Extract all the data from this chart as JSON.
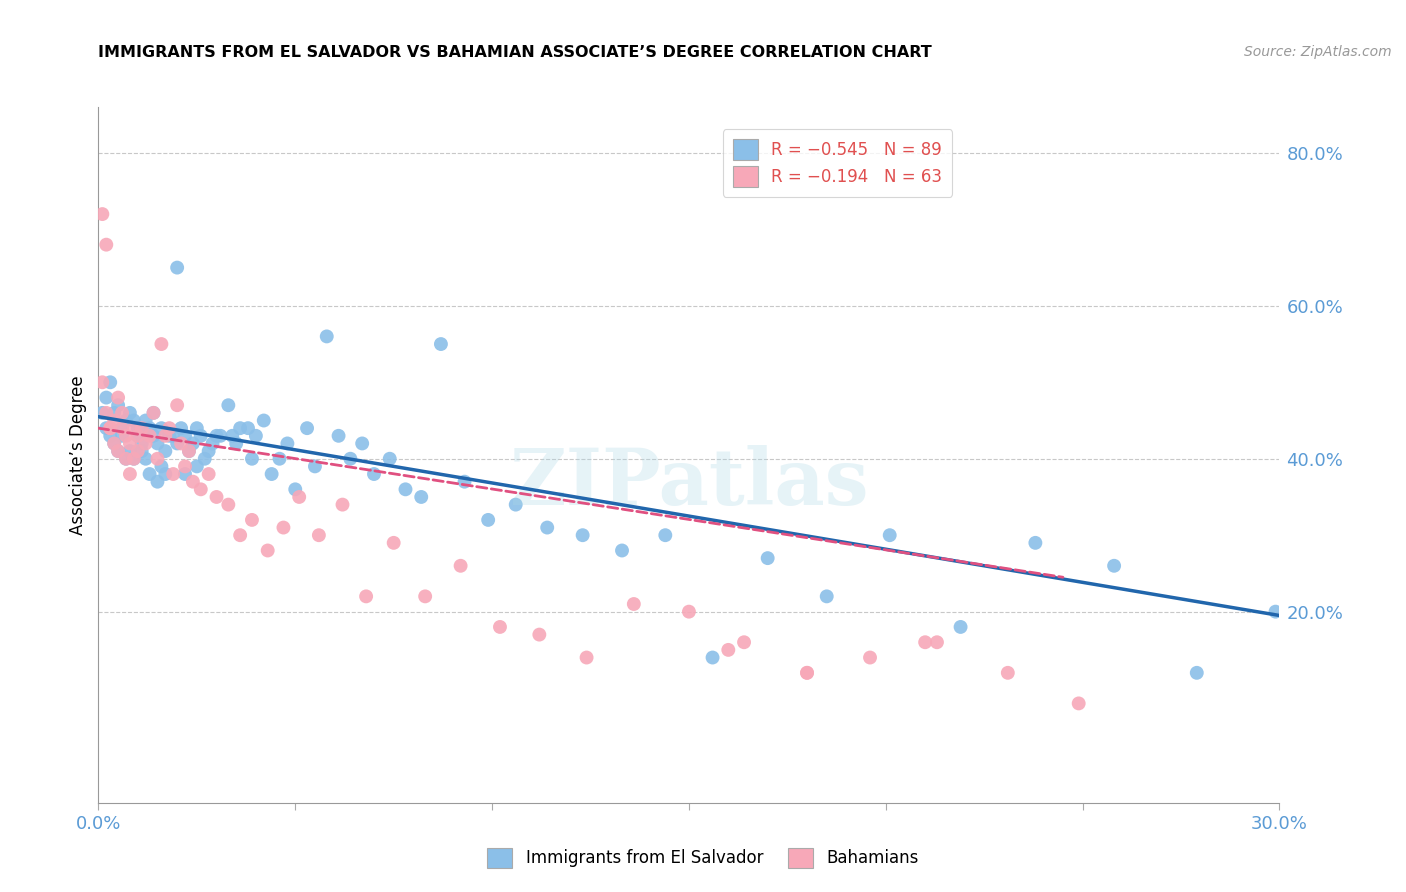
{
  "title": "IMMIGRANTS FROM EL SALVADOR VS BAHAMIAN ASSOCIATE’S DEGREE CORRELATION CHART",
  "source": "Source: ZipAtlas.com",
  "ylabel": "Associate’s Degree",
  "blue_color": "#8bbfe8",
  "blue_line_color": "#2166ac",
  "pink_color": "#f7a8b8",
  "pink_line_color": "#e05080",
  "watermark": "ZIPatlas",
  "xmin": 0.0,
  "xmax": 0.3,
  "ymin": -0.05,
  "ymax": 0.86,
  "legend_r1": "-0.545",
  "legend_n1": "89",
  "legend_r2": "-0.194",
  "legend_n2": "63",
  "yticks": [
    0.0,
    0.2,
    0.4,
    0.6,
    0.8
  ],
  "ytick_labels": [
    "",
    "20.0%",
    "40.0%",
    "60.0%",
    "80.0%"
  ],
  "blue_trend_x0": 0.0,
  "blue_trend_y0": 0.455,
  "blue_trend_x1": 0.3,
  "blue_trend_y1": 0.195,
  "pink_trend_x0": 0.0,
  "pink_trend_y0": 0.44,
  "pink_trend_x1": 0.245,
  "pink_trend_y1": 0.245,
  "scatter_blue_x": [
    0.001,
    0.002,
    0.002,
    0.003,
    0.003,
    0.004,
    0.004,
    0.005,
    0.005,
    0.006,
    0.006,
    0.007,
    0.007,
    0.008,
    0.008,
    0.009,
    0.009,
    0.01,
    0.01,
    0.011,
    0.011,
    0.012,
    0.012,
    0.013,
    0.013,
    0.014,
    0.014,
    0.015,
    0.015,
    0.016,
    0.016,
    0.017,
    0.017,
    0.018,
    0.019,
    0.02,
    0.02,
    0.021,
    0.022,
    0.022,
    0.023,
    0.024,
    0.025,
    0.025,
    0.026,
    0.027,
    0.028,
    0.029,
    0.03,
    0.031,
    0.033,
    0.034,
    0.035,
    0.036,
    0.038,
    0.039,
    0.04,
    0.042,
    0.044,
    0.046,
    0.048,
    0.05,
    0.053,
    0.055,
    0.058,
    0.061,
    0.064,
    0.067,
    0.07,
    0.074,
    0.078,
    0.082,
    0.087,
    0.093,
    0.099,
    0.106,
    0.114,
    0.123,
    0.133,
    0.144,
    0.156,
    0.17,
    0.185,
    0.201,
    0.219,
    0.238,
    0.258,
    0.279,
    0.299
  ],
  "scatter_blue_y": [
    0.46,
    0.44,
    0.48,
    0.43,
    0.5,
    0.42,
    0.46,
    0.47,
    0.41,
    0.44,
    0.43,
    0.45,
    0.4,
    0.46,
    0.41,
    0.45,
    0.4,
    0.44,
    0.43,
    0.42,
    0.41,
    0.45,
    0.4,
    0.44,
    0.38,
    0.43,
    0.46,
    0.37,
    0.42,
    0.39,
    0.44,
    0.38,
    0.41,
    0.43,
    0.43,
    0.65,
    0.42,
    0.44,
    0.43,
    0.38,
    0.41,
    0.42,
    0.44,
    0.39,
    0.43,
    0.4,
    0.41,
    0.42,
    0.43,
    0.43,
    0.47,
    0.43,
    0.42,
    0.44,
    0.44,
    0.4,
    0.43,
    0.45,
    0.38,
    0.4,
    0.42,
    0.36,
    0.44,
    0.39,
    0.56,
    0.43,
    0.4,
    0.42,
    0.38,
    0.4,
    0.36,
    0.35,
    0.55,
    0.37,
    0.32,
    0.34,
    0.31,
    0.3,
    0.28,
    0.3,
    0.14,
    0.27,
    0.22,
    0.3,
    0.18,
    0.29,
    0.26,
    0.12,
    0.2
  ],
  "scatter_pink_x": [
    0.001,
    0.001,
    0.002,
    0.002,
    0.003,
    0.003,
    0.004,
    0.004,
    0.005,
    0.005,
    0.006,
    0.006,
    0.007,
    0.007,
    0.008,
    0.008,
    0.009,
    0.009,
    0.01,
    0.01,
    0.011,
    0.012,
    0.013,
    0.014,
    0.015,
    0.016,
    0.017,
    0.018,
    0.019,
    0.02,
    0.021,
    0.022,
    0.023,
    0.024,
    0.026,
    0.028,
    0.03,
    0.033,
    0.036,
    0.039,
    0.043,
    0.047,
    0.051,
    0.056,
    0.062,
    0.068,
    0.075,
    0.083,
    0.092,
    0.102,
    0.112,
    0.124,
    0.136,
    0.15,
    0.164,
    0.18,
    0.196,
    0.213,
    0.231,
    0.249,
    0.21,
    0.18,
    0.16
  ],
  "scatter_pink_y": [
    0.72,
    0.5,
    0.68,
    0.46,
    0.44,
    0.44,
    0.42,
    0.45,
    0.41,
    0.48,
    0.46,
    0.44,
    0.43,
    0.4,
    0.42,
    0.38,
    0.44,
    0.4,
    0.43,
    0.41,
    0.44,
    0.42,
    0.43,
    0.46,
    0.4,
    0.55,
    0.43,
    0.44,
    0.38,
    0.47,
    0.42,
    0.39,
    0.41,
    0.37,
    0.36,
    0.38,
    0.35,
    0.34,
    0.3,
    0.32,
    0.28,
    0.31,
    0.35,
    0.3,
    0.34,
    0.22,
    0.29,
    0.22,
    0.26,
    0.18,
    0.17,
    0.14,
    0.21,
    0.2,
    0.16,
    0.12,
    0.14,
    0.16,
    0.12,
    0.08,
    0.16,
    0.12,
    0.15
  ]
}
